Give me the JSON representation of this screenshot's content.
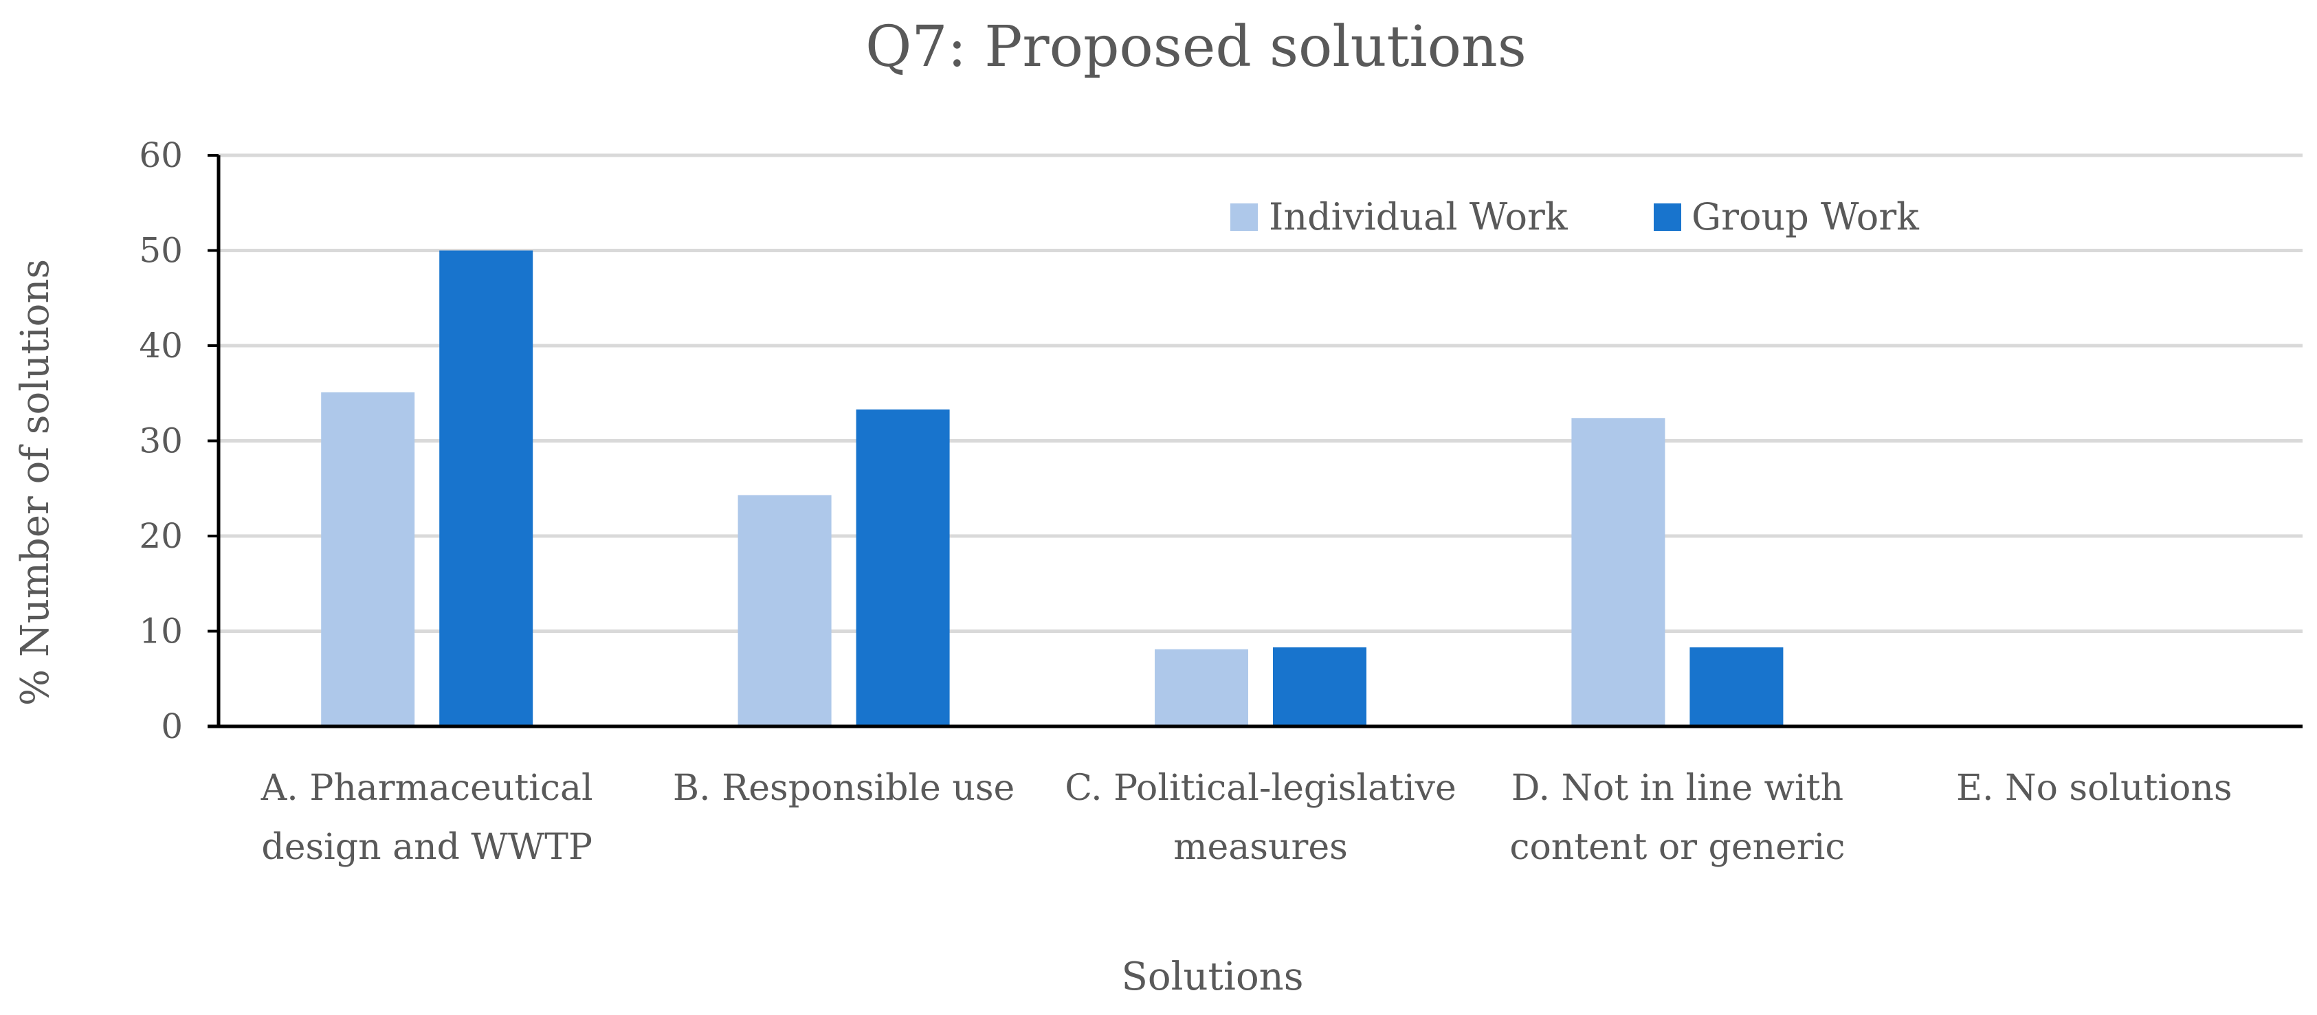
{
  "chart_data": {
    "type": "bar",
    "title": "Q7: Proposed solutions",
    "xlabel": "Solutions",
    "ylabel": "% Number of solutions",
    "ylim": [
      0,
      60
    ],
    "yticks": [
      0,
      10,
      20,
      30,
      40,
      50,
      60
    ],
    "grid": true,
    "legend_position": "top-right",
    "categories": [
      [
        "A. Pharmaceutical",
        "design and WWTP"
      ],
      [
        "B. Responsible use"
      ],
      [
        "C. Political-legislative",
        "measures"
      ],
      [
        "D. Not in line with",
        "content or generic"
      ],
      [
        "E. No solutions"
      ]
    ],
    "series": [
      {
        "name": "Individual Work",
        "color": "#aec8ea",
        "values": [
          35.1,
          24.3,
          8.1,
          32.4,
          0
        ]
      },
      {
        "name": "Group Work",
        "color": "#1874cd",
        "values": [
          50,
          33.3,
          8.3,
          8.3,
          0
        ]
      }
    ]
  }
}
